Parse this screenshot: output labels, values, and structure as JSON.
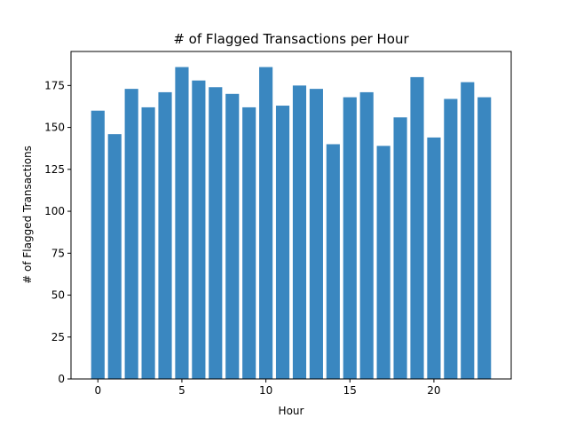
{
  "chart_data": {
    "type": "bar",
    "title": "# of Flagged Transactions per Hour",
    "xlabel": "Hour",
    "ylabel": "# of Flagged Transactions",
    "x": [
      0,
      1,
      2,
      3,
      4,
      5,
      6,
      7,
      8,
      9,
      10,
      11,
      12,
      13,
      14,
      15,
      16,
      17,
      18,
      19,
      20,
      21,
      22,
      23
    ],
    "values": [
      160,
      146,
      173,
      162,
      171,
      186,
      178,
      174,
      170,
      162,
      186,
      163,
      175,
      173,
      140,
      168,
      171,
      139,
      156,
      180,
      144,
      167,
      177,
      168
    ],
    "xlim": [
      -1.6,
      24.6
    ],
    "ylim": [
      0,
      195.3
    ],
    "xticks": [
      0,
      5,
      10,
      15,
      20
    ],
    "yticks": [
      0,
      25,
      50,
      75,
      100,
      125,
      150,
      175
    ],
    "bar_color": "#3a87c0",
    "grid": false,
    "legend": "none"
  }
}
